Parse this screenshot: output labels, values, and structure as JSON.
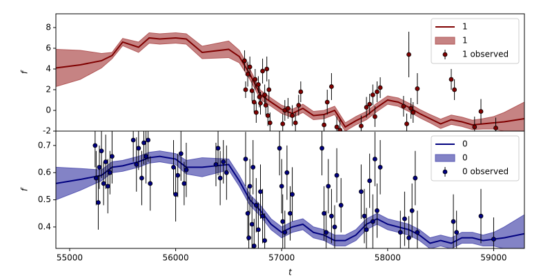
{
  "chart_data": [
    {
      "type": "line",
      "ylabel": "f",
      "xlim": [
        54870,
        59290
      ],
      "ylim": [
        -2,
        9.33
      ],
      "yticks": [
        -2,
        0,
        2,
        4,
        6,
        8
      ],
      "legend": "upper right",
      "x": [
        54870,
        55100,
        55300,
        55400,
        55500,
        55650,
        55750,
        55850,
        56000,
        56100,
        56250,
        56500,
        56600,
        56700,
        56800,
        56900,
        57000,
        57100,
        57200,
        57300,
        57400,
        57500,
        57600,
        57700,
        57800,
        57900,
        58000,
        58100,
        58200,
        58300,
        58400,
        58500,
        58600,
        58700,
        58800,
        58900,
        59000,
        59100,
        59290
      ],
      "series": [
        {
          "name": "1",
          "kind": "line",
          "color": "#7f0000",
          "values": [
            4.1,
            4.4,
            4.8,
            5.3,
            6.6,
            6.1,
            7.0,
            6.9,
            7.0,
            6.9,
            5.6,
            5.9,
            5.2,
            3.5,
            1.5,
            0.8,
            0.1,
            -0.3,
            0.2,
            -0.5,
            -0.4,
            0.0,
            -1.6,
            -1.0,
            -0.5,
            0.3,
            1.0,
            0.8,
            0.3,
            -0.3,
            -0.8,
            -1.3,
            -0.9,
            -1.1,
            -1.4,
            -1.3,
            -1.2,
            -1.1,
            -0.8
          ]
        },
        {
          "name": "1",
          "kind": "band",
          "color": "#b35959",
          "upper": [
            5.9,
            5.8,
            5.5,
            5.6,
            6.95,
            6.6,
            7.5,
            7.4,
            7.5,
            7.4,
            6.2,
            6.7,
            5.8,
            4.0,
            1.95,
            1.2,
            0.5,
            0.1,
            0.6,
            -0.1,
            0.0,
            0.4,
            -1.2,
            -0.6,
            -0.1,
            0.7,
            1.4,
            1.2,
            0.7,
            0.1,
            -0.4,
            -0.85,
            -0.45,
            -0.65,
            -0.95,
            -0.8,
            -0.6,
            -0.2,
            0.8
          ],
          "lower": [
            2.3,
            3.0,
            4.1,
            5.0,
            6.25,
            5.6,
            6.5,
            6.4,
            6.5,
            6.4,
            5.0,
            5.1,
            4.6,
            3.0,
            1.05,
            0.4,
            -0.3,
            -0.7,
            -0.2,
            -0.9,
            -0.8,
            -0.4,
            -2.0,
            -1.4,
            -0.9,
            -0.1,
            0.6,
            0.4,
            -0.1,
            -0.7,
            -1.2,
            -1.75,
            -1.35,
            -1.55,
            -1.85,
            -1.8,
            -1.8,
            -2.0,
            -2.4
          ]
        },
        {
          "name": "1 observed",
          "kind": "observed",
          "color": "#7f0000",
          "x": [
            56650,
            56660,
            56680,
            56700,
            56720,
            56740,
            56750,
            56760,
            56780,
            56790,
            56800,
            56820,
            56840,
            56850,
            56860,
            56870,
            56880,
            56890,
            57010,
            57030,
            57060,
            57100,
            57130,
            57160,
            57180,
            57400,
            57430,
            57470,
            57520,
            57550,
            57750,
            57800,
            57830,
            57860,
            57880,
            57900,
            57930,
            58150,
            58180,
            58200,
            58220,
            58240,
            58280,
            58600,
            58630,
            58820,
            58880,
            59020
          ],
          "values": [
            4.8,
            2,
            3.5,
            4.2,
            1.9,
            0.8,
            3,
            -0.2,
            2.5,
            1.3,
            0.7,
            3.8,
            1.5,
            0.5,
            4,
            -0.5,
            2,
            -1.2,
            -1.3,
            0,
            0.2,
            -0.5,
            -1.2,
            0.5,
            1.8,
            -1.4,
            0.8,
            2.3,
            -1.6,
            -1.9,
            -1.5,
            0.3,
            0.6,
            1.5,
            -0.6,
            1.8,
            2.2,
            0.4,
            -1.3,
            5.4,
            0.2,
            -0.2,
            2.1,
            3,
            2,
            -1.6,
            -0.1,
            -1.7
          ],
          "errors": [
            1,
            0.8,
            1.2,
            1,
            1,
            1,
            1,
            1,
            0.8,
            1,
            1.1,
            1.2,
            1,
            1,
            1.2,
            1,
            1,
            1,
            1,
            1,
            1,
            1,
            1,
            1,
            1,
            1,
            1.2,
            1.3,
            1,
            1,
            1,
            1,
            1,
            1,
            1,
            1,
            1,
            1,
            1,
            2.2,
            1,
            1,
            1.5,
            1,
            1,
            1,
            1.2,
            1
          ]
        }
      ]
    },
    {
      "type": "line",
      "ylabel": "f",
      "xlabel": "t",
      "xlim": [
        54870,
        59290
      ],
      "ylim": [
        0.321,
        0.753
      ],
      "yticks": [
        0.4,
        0.5,
        0.6,
        0.7
      ],
      "xticks": [
        55000,
        56000,
        57000,
        58000,
        59000
      ],
      "legend": "upper right",
      "x": [
        54870,
        55100,
        55300,
        55400,
        55500,
        55650,
        55750,
        55850,
        56000,
        56100,
        56250,
        56500,
        56600,
        56700,
        56800,
        56900,
        57000,
        57100,
        57200,
        57300,
        57400,
        57500,
        57600,
        57700,
        57800,
        57900,
        58000,
        58100,
        58200,
        58300,
        58400,
        58500,
        58600,
        58700,
        58800,
        58900,
        59000,
        59100,
        59290
      ],
      "series": [
        {
          "name": "0",
          "kind": "line",
          "color": "#00007f",
          "values": [
            0.56,
            0.575,
            0.59,
            0.62,
            0.625,
            0.64,
            0.655,
            0.66,
            0.65,
            0.62,
            0.62,
            0.63,
            0.57,
            0.5,
            0.46,
            0.41,
            0.38,
            0.4,
            0.41,
            0.38,
            0.37,
            0.35,
            0.35,
            0.37,
            0.41,
            0.43,
            0.41,
            0.4,
            0.39,
            0.37,
            0.34,
            0.35,
            0.34,
            0.36,
            0.36,
            0.35,
            0.355,
            0.36,
            0.375
          ]
        },
        {
          "name": "0",
          "kind": "band",
          "color": "#5959b3",
          "upper": [
            0.62,
            0.615,
            0.61,
            0.64,
            0.645,
            0.66,
            0.675,
            0.68,
            0.67,
            0.645,
            0.655,
            0.65,
            0.59,
            0.52,
            0.48,
            0.43,
            0.4,
            0.42,
            0.43,
            0.4,
            0.39,
            0.37,
            0.37,
            0.39,
            0.43,
            0.45,
            0.43,
            0.42,
            0.41,
            0.39,
            0.36,
            0.37,
            0.36,
            0.38,
            0.38,
            0.37,
            0.38,
            0.4,
            0.445
          ],
          "lower": [
            0.5,
            0.535,
            0.57,
            0.6,
            0.605,
            0.62,
            0.635,
            0.64,
            0.63,
            0.595,
            0.585,
            0.61,
            0.55,
            0.48,
            0.44,
            0.39,
            0.36,
            0.38,
            0.39,
            0.36,
            0.35,
            0.33,
            0.33,
            0.35,
            0.39,
            0.41,
            0.39,
            0.38,
            0.37,
            0.35,
            0.32,
            0.33,
            0.32,
            0.34,
            0.34,
            0.33,
            0.33,
            0.32,
            0.305
          ]
        },
        {
          "name": "0 observed",
          "kind": "observed",
          "color": "#00007f",
          "x": [
            55240,
            55250,
            55270,
            55280,
            55300,
            55320,
            55340,
            55360,
            55380,
            55400,
            55600,
            55630,
            55650,
            55680,
            55700,
            55720,
            55740,
            55760,
            55980,
            56000,
            56020,
            56050,
            56080,
            56100,
            56380,
            56400,
            56420,
            56450,
            56480,
            56660,
            56680,
            56690,
            56700,
            56720,
            56730,
            56740,
            56760,
            56780,
            56800,
            56820,
            56840,
            56980,
            57000,
            57010,
            57030,
            57050,
            57080,
            57100,
            57380,
            57400,
            57420,
            57440,
            57470,
            57500,
            57520,
            57560,
            57750,
            57780,
            57800,
            57830,
            57860,
            57880,
            57900,
            57930,
            58120,
            58160,
            58200,
            58230,
            58260,
            58280,
            58620,
            58650,
            58880,
            59000
          ],
          "values": [
            0.7,
            0.58,
            0.49,
            0.62,
            0.68,
            0.56,
            0.64,
            0.55,
            0.6,
            0.66,
            0.72,
            0.63,
            0.69,
            0.58,
            0.71,
            0.66,
            0.72,
            0.56,
            0.62,
            0.52,
            0.59,
            0.67,
            0.56,
            0.61,
            0.63,
            0.69,
            0.58,
            0.64,
            0.6,
            0.65,
            0.45,
            0.36,
            0.55,
            0.41,
            0.62,
            0.33,
            0.48,
            0.39,
            0.53,
            0.44,
            0.35,
            0.69,
            0.55,
            0.42,
            0.38,
            0.6,
            0.45,
            0.52,
            0.69,
            0.45,
            0.38,
            0.55,
            0.44,
            0.4,
            0.59,
            0.48,
            0.53,
            0.44,
            0.39,
            0.57,
            0.42,
            0.65,
            0.46,
            0.62,
            0.38,
            0.43,
            0.36,
            0.46,
            0.58,
            0.38,
            0.42,
            0.38,
            0.44,
            0.355
          ],
          "errors": [
            0.08,
            0.1,
            0.1,
            0.08,
            0.1,
            0.08,
            0.1,
            0.1,
            0.08,
            0.1,
            0.08,
            0.1,
            0.08,
            0.1,
            0.08,
            0.1,
            0.08,
            0.1,
            0.1,
            0.1,
            0.08,
            0.1,
            0.08,
            0.1,
            0.08,
            0.1,
            0.1,
            0.08,
            0.1,
            0.1,
            0.1,
            0.1,
            0.1,
            0.1,
            0.1,
            0.1,
            0.1,
            0.1,
            0.1,
            0.1,
            0.1,
            0.1,
            0.1,
            0.1,
            0.08,
            0.1,
            0.1,
            0.1,
            0.1,
            0.1,
            0.08,
            0.1,
            0.1,
            0.08,
            0.1,
            0.1,
            0.1,
            0.1,
            0.08,
            0.1,
            0.1,
            0.1,
            0.1,
            0.1,
            0.08,
            0.1,
            0.08,
            0.1,
            0.1,
            0.08,
            0.1,
            0.08,
            0.1,
            0.08
          ]
        }
      ]
    }
  ]
}
